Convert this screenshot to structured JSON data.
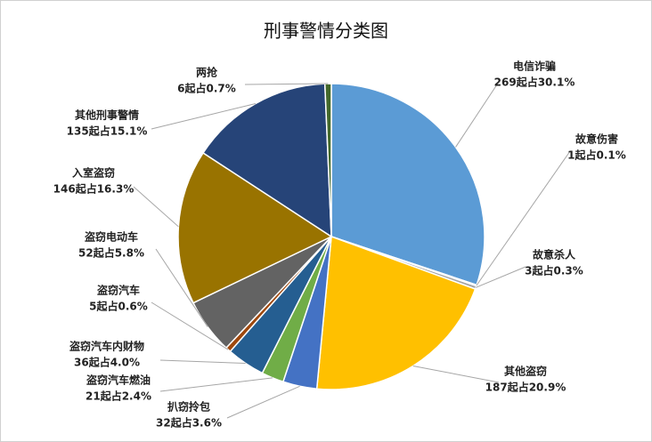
{
  "chart_data": {
    "type": "pie",
    "title": "刑事警情分类图",
    "categories": [
      "电信诈骗",
      "故意伤害",
      "故意杀人",
      "其他盗窃",
      "扒窃拎包",
      "盗窃汽车燃油",
      "盗窃汽车内财物",
      "盗窃汽车",
      "盗窃电动车",
      "入室盗窃",
      "其他刑事警情",
      "两抢"
    ],
    "values": [
      269,
      1,
      3,
      187,
      32,
      21,
      36,
      5,
      52,
      146,
      135,
      6
    ],
    "value_labels": [
      "269起占30.1%",
      "1起占0.1%",
      "3起占0.3%",
      "187起占20.9%",
      "32起占3.6%",
      "21起占2.4%",
      "36起占4.0%",
      "5起占0.6%",
      "52起占5.8%",
      "146起占16.3%",
      "135起占15.1%",
      "6起占0.7%"
    ],
    "colors": [
      "#5b9bd5",
      "#ed7d31",
      "#a5a5a5",
      "#ffc000",
      "#4472c4",
      "#70ad47",
      "#255e91",
      "#9e480e",
      "#636363",
      "#997300",
      "#264478",
      "#43682b"
    ]
  }
}
